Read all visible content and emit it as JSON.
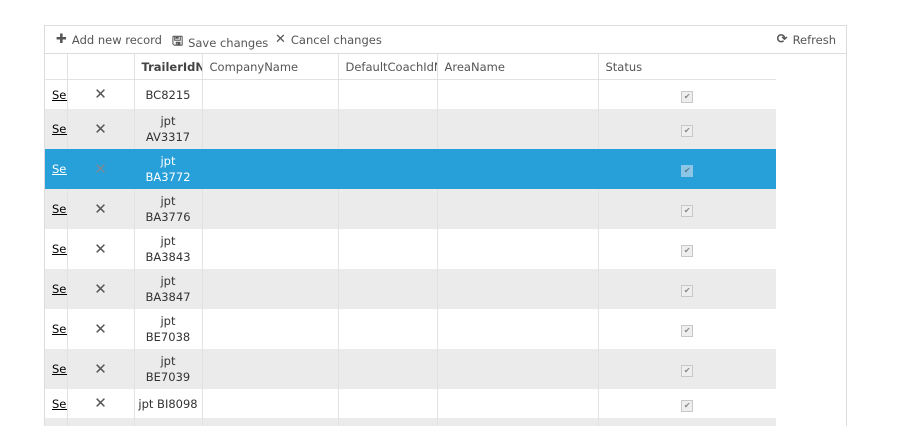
{
  "toolbar": {
    "add": "Add new record",
    "save": "Save changes",
    "cancel": "Cancel changes",
    "refresh": "Refresh"
  },
  "columns": [
    "",
    "",
    "TrailerIdNumber",
    "CompanyName",
    "DefaultCoachIdNumber",
    "AreaName",
    "Status"
  ],
  "row_link": "Select",
  "rows": [
    {
      "trailer": [
        "BC8215"
      ],
      "status": true
    },
    {
      "trailer": [
        "jpt",
        "AV3317"
      ],
      "status": true
    },
    {
      "trailer": [
        "jpt",
        "BA3772"
      ],
      "status": true,
      "selected": true
    },
    {
      "trailer": [
        "jpt",
        "BA3776"
      ],
      "status": true
    },
    {
      "trailer": [
        "jpt",
        "BA3843"
      ],
      "status": true
    },
    {
      "trailer": [
        "jpt",
        "BA3847"
      ],
      "status": true
    },
    {
      "trailer": [
        "jpt",
        "BE7038"
      ],
      "status": true
    },
    {
      "trailer": [
        "jpt",
        "BE7039"
      ],
      "status": true
    },
    {
      "trailer": [
        "jpt BI8098"
      ],
      "status": true
    }
  ],
  "colors": {
    "selected": "#279fd9",
    "alt_row": "#ebebeb"
  }
}
